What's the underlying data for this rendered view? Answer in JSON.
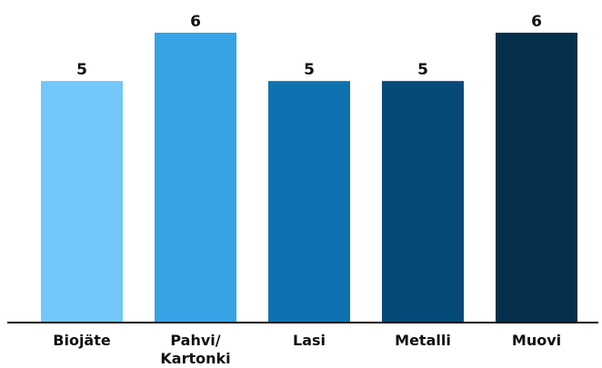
{
  "chart_data": {
    "type": "bar",
    "title": "",
    "xlabel": "",
    "ylabel": "",
    "categories": [
      [
        "Biojäte"
      ],
      [
        "Pahvi/",
        "Kartonki"
      ],
      [
        "Lasi"
      ],
      [
        "Metalli"
      ],
      [
        "Muovi"
      ]
    ],
    "values": [
      5,
      6,
      5,
      5,
      6
    ],
    "colors": [
      "#73c7fb",
      "#35a3e6",
      "#0e72b1",
      "#054a79",
      "#04304b"
    ],
    "ylim": [
      0,
      6
    ],
    "grid": false,
    "legend": "none",
    "data_labels": true
  }
}
